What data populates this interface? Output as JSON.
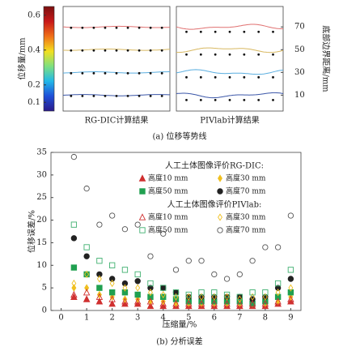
{
  "chart_data": [
    {
      "type": "contour",
      "panels": [
        "RG-DIC计算结果",
        "PIVlab计算结果"
      ],
      "caption": "(a) 位移等势线",
      "colorbar_label": "位移量/mm",
      "clim": [
        0.05,
        0.65
      ],
      "cticks": [
        0.1,
        0.2,
        0.4,
        0.6
      ],
      "colormap": [
        "#2a1a8a",
        "#1f4fd8",
        "#22b8e8",
        "#7fe07f",
        "#f2e020",
        "#f07018",
        "#c81818",
        "#7a1010"
      ],
      "ylabel": "底部边界距离/mm",
      "ylim": [
        -4,
        88
      ],
      "yticks": [
        10,
        30,
        50,
        70
      ],
      "contours": [
        {
          "level": 70,
          "color": "#e07070"
        },
        {
          "level": 50,
          "color": "#d8b860"
        },
        {
          "level": 30,
          "color": "#5aaee0"
        },
        {
          "level": 10,
          "color": "#3a56a8"
        }
      ]
    },
    {
      "type": "scatter",
      "caption": "(b) 分析误差",
      "xlabel": "压缩量/%",
      "ylabel": "位移误差/%",
      "xlim": [
        -0.4,
        9.4
      ],
      "ylim": [
        0,
        35
      ],
      "xticks": [
        0,
        1,
        2,
        3,
        4,
        5,
        6,
        7,
        8,
        9
      ],
      "yticks": [
        0,
        5,
        10,
        15,
        20,
        25,
        30,
        35
      ],
      "legend_titles": [
        "人工土体图像评价RG-DIC:",
        "人工土体图像评价PIVlab:"
      ],
      "x": [
        0.5,
        1,
        1.5,
        2,
        2.5,
        3,
        3.5,
        4,
        4.5,
        5,
        5.5,
        6,
        6.5,
        7,
        7.5,
        8,
        8.5,
        9
      ],
      "series": [
        {
          "name": "高度10 mm",
          "marker": "triangle",
          "filled": true,
          "color": "#d03030",
          "values": [
            3,
            2.5,
            2,
            1.5,
            1.5,
            1.5,
            1,
            1,
            1,
            1,
            1,
            1,
            1,
            1,
            1,
            1,
            1.5,
            2
          ]
        },
        {
          "name": "高度30 mm",
          "marker": "diamond",
          "filled": true,
          "color": "#f0c020",
          "values": [
            5,
            5,
            3.5,
            3,
            2.5,
            2.5,
            2,
            2,
            1.5,
            1.5,
            1.5,
            1.5,
            1.5,
            1.5,
            1.5,
            1.5,
            2,
            3
          ]
        },
        {
          "name": "高度50 mm",
          "marker": "square",
          "filled": true,
          "color": "#20a050",
          "values": [
            9.5,
            8,
            5,
            4,
            4,
            3.5,
            3,
            3,
            2.5,
            2,
            2,
            2,
            2,
            2,
            1.5,
            2,
            3,
            4
          ]
        },
        {
          "name": "高度70 mm",
          "marker": "circle",
          "filled": true,
          "color": "#222222",
          "values": [
            16,
            12,
            8,
            7,
            6,
            6.5,
            5,
            5,
            4,
            3,
            3,
            3,
            3,
            3,
            2.5,
            3,
            5,
            7
          ]
        },
        {
          "name": "高度10 mm",
          "marker": "triangle",
          "filled": false,
          "color": "#d03030",
          "values": [
            3.5,
            4,
            3,
            2.5,
            2,
            2,
            2,
            1.5,
            1.5,
            1.5,
            1.5,
            1.5,
            1.5,
            1.5,
            1.5,
            1.5,
            2,
            2.5
          ]
        },
        {
          "name": "高度30 mm",
          "marker": "diamond",
          "filled": false,
          "color": "#f0c020",
          "values": [
            6,
            8,
            7,
            6,
            5,
            5,
            4,
            3.5,
            3,
            3,
            3,
            3,
            3,
            2.5,
            3,
            3,
            4,
            5
          ]
        },
        {
          "name": "高度50 mm",
          "marker": "square",
          "filled": false,
          "color": "#40b070",
          "values": [
            19,
            14,
            11,
            10,
            9,
            8,
            6,
            5,
            4,
            3.5,
            4,
            4,
            3.5,
            3,
            4,
            4,
            6,
            9
          ]
        },
        {
          "name": "高度70 mm",
          "marker": "circle",
          "filled": false,
          "color": "#555555",
          "values": [
            34,
            27,
            19,
            21,
            18,
            19,
            12,
            17,
            9,
            11,
            11,
            8,
            7,
            8,
            11,
            14,
            14,
            21
          ]
        }
      ]
    }
  ]
}
